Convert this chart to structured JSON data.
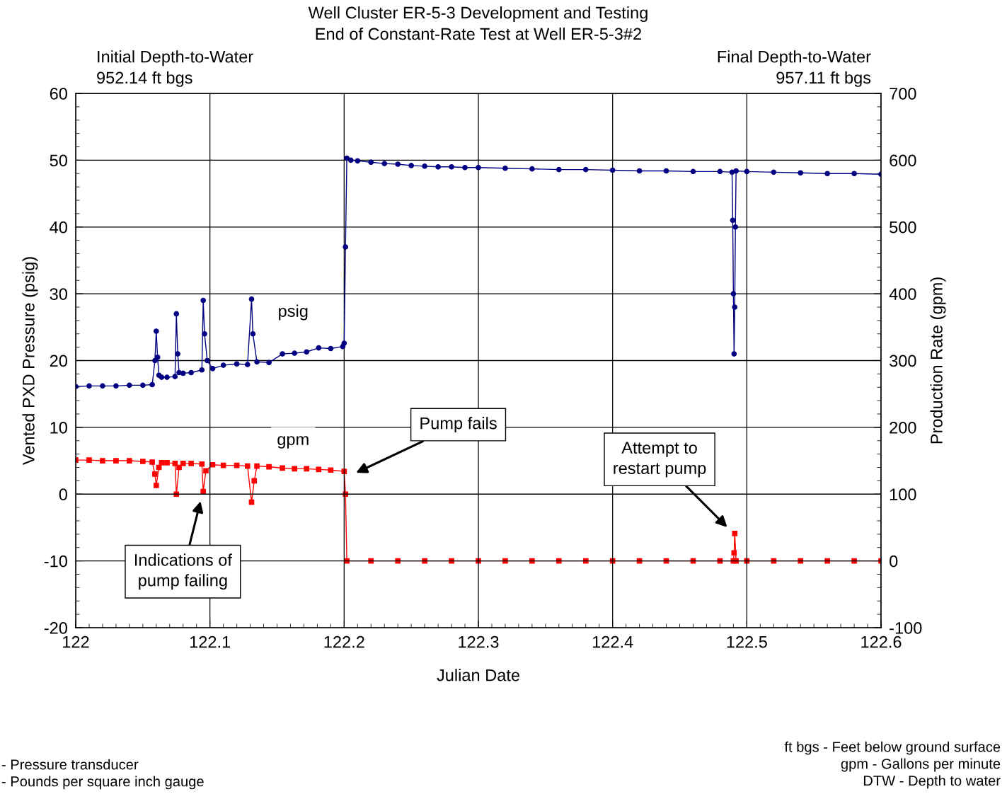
{
  "chart_data": {
    "type": "line",
    "title": "Well Cluster ER-5-3 Development and Testing",
    "subtitle": "End of Constant-Rate Test at Well ER-5-3#2",
    "xlabel": "Julian Date",
    "ylabel": "Vented PXD Pressure (psig)",
    "y2label": "Production Rate (gpm)",
    "xlim": [
      122,
      122.6
    ],
    "xticks": [
      122,
      122.1,
      122.2,
      122.3,
      122.4,
      122.5,
      122.6
    ],
    "ylim": [
      -20,
      60
    ],
    "yticks": [
      -20,
      -10,
      0,
      10,
      20,
      30,
      40,
      50,
      60
    ],
    "y2lim": [
      -100,
      700
    ],
    "y2ticks": [
      -100,
      0,
      100,
      200,
      300,
      400,
      500,
      600,
      700
    ],
    "grid": true,
    "legend": false,
    "line_style": "solid",
    "series": [
      {
        "name": "psig",
        "color": "#000080",
        "marker": "circle",
        "x": [
          122.0,
          122.01,
          122.02,
          122.03,
          122.04,
          122.05,
          122.057,
          122.059,
          122.06,
          122.061,
          122.062,
          122.064,
          122.068,
          122.074,
          122.075,
          122.076,
          122.077,
          122.08,
          122.086,
          122.094,
          122.095,
          122.096,
          122.098,
          122.102,
          122.11,
          122.12,
          122.128,
          122.131,
          122.132,
          122.135,
          122.144,
          122.154,
          122.163,
          122.172,
          122.181,
          122.19,
          122.199,
          122.2,
          122.201,
          122.202,
          122.205,
          122.21,
          122.22,
          122.23,
          122.24,
          122.25,
          122.26,
          122.27,
          122.28,
          122.29,
          122.3,
          122.32,
          122.34,
          122.36,
          122.38,
          122.4,
          122.42,
          122.44,
          122.46,
          122.48,
          122.489,
          122.4895,
          122.49,
          122.4905,
          122.491,
          122.4915,
          122.492,
          122.5,
          122.52,
          122.54,
          122.56,
          122.58,
          122.6
        ],
        "values": [
          16.1,
          16.2,
          16.2,
          16.2,
          16.3,
          16.3,
          16.4,
          20.0,
          24.4,
          20.5,
          17.8,
          17.5,
          17.5,
          17.6,
          27.0,
          21.0,
          18.2,
          18.1,
          18.2,
          18.6,
          29.0,
          24.0,
          20.0,
          18.8,
          19.3,
          19.5,
          19.4,
          29.2,
          24.0,
          19.8,
          19.7,
          21.0,
          21.1,
          21.3,
          21.9,
          21.8,
          22.1,
          22.6,
          37.0,
          50.3,
          50.0,
          49.9,
          49.7,
          49.5,
          49.4,
          49.2,
          49.1,
          49.0,
          49.0,
          48.9,
          48.9,
          48.8,
          48.7,
          48.6,
          48.6,
          48.5,
          48.4,
          48.4,
          48.3,
          48.3,
          48.2,
          41.0,
          30.0,
          21.0,
          28.0,
          40.0,
          48.4,
          48.3,
          48.2,
          48.1,
          48.0,
          48.0,
          47.9
        ]
      },
      {
        "name": "gpm",
        "color": "#ff0000",
        "marker": "square",
        "axis": "y2",
        "x": [
          122.0,
          122.01,
          122.02,
          122.03,
          122.04,
          122.05,
          122.057,
          122.059,
          122.06,
          122.062,
          122.064,
          122.068,
          122.074,
          122.075,
          122.077,
          122.08,
          122.086,
          122.094,
          122.095,
          122.097,
          122.102,
          122.11,
          122.12,
          122.128,
          122.131,
          122.133,
          122.135,
          122.144,
          122.154,
          122.163,
          122.172,
          122.181,
          122.19,
          122.2,
          122.201,
          122.202,
          122.22,
          122.24,
          122.26,
          122.28,
          122.3,
          122.32,
          122.34,
          122.36,
          122.38,
          122.4,
          122.42,
          122.44,
          122.46,
          122.48,
          122.49,
          122.4905,
          122.491,
          122.492,
          122.5,
          122.52,
          122.54,
          122.56,
          122.58,
          122.6
        ],
        "values": [
          151,
          151,
          150,
          150,
          150,
          149,
          148,
          130,
          113,
          140,
          147,
          147,
          146,
          100,
          140,
          146,
          146,
          145,
          104,
          135,
          144,
          143,
          143,
          142,
          88,
          120,
          142,
          141,
          139,
          138,
          138,
          137,
          136,
          134,
          100,
          0,
          0,
          0,
          0,
          0,
          0,
          0,
          0,
          0,
          0,
          0,
          0,
          0,
          0,
          0,
          0,
          12,
          41,
          0,
          0,
          0,
          0,
          0,
          0,
          0
        ]
      }
    ],
    "annotations": [
      "Pump fails",
      "Indications of\npump failing",
      "Attempt to\nrestart pump",
      "Initial Depth-to-Water\n952.14 ft bgs",
      "Final Depth-to-Water\n957.11 ft bgs",
      "- Pressure transducer\n- Pounds per square inch gauge",
      "ft bgs - Feet below ground surface\ngpm - Gallons per minute\nDTW - Depth to water"
    ]
  }
}
